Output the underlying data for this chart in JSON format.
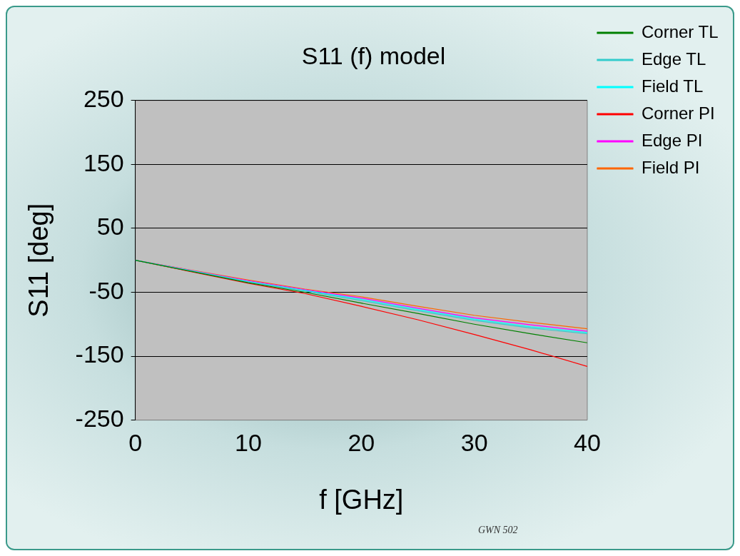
{
  "chart_data": {
    "type": "line",
    "title": "S11 (f) model",
    "xlabel": "f [GHz]",
    "ylabel": "S11 [deg]",
    "annotations": [
      "GWN 502"
    ],
    "x": [
      0,
      10,
      15,
      20,
      25,
      30,
      35,
      40
    ],
    "series": [
      {
        "name": "Corner TL",
        "color": "#008000",
        "values": [
          0,
          -35,
          -50,
          -67,
          -83,
          -100,
          -115,
          -129
        ]
      },
      {
        "name": "Edge TL",
        "color": "#33cccc",
        "values": [
          0,
          -34,
          -48,
          -63,
          -79,
          -94,
          -106,
          -115
        ]
      },
      {
        "name": "Field TL",
        "color": "#00ffff",
        "values": [
          0,
          -33,
          -47,
          -61,
          -77,
          -92,
          -104,
          -113
        ]
      },
      {
        "name": "Corner PI",
        "color": "#ff0000",
        "values": [
          0,
          -36,
          -52,
          -72,
          -93,
          -116,
          -140,
          -166
        ]
      },
      {
        "name": "Edge PI",
        "color": "#ff00ff",
        "values": [
          0,
          -32,
          -46,
          -59,
          -75,
          -90,
          -101,
          -111
        ]
      },
      {
        "name": "Field PI",
        "color": "#ff6600",
        "values": [
          0,
          -31,
          -45,
          -57,
          -72,
          -86,
          -97,
          -107
        ]
      }
    ],
    "xlim": [
      0,
      40
    ],
    "xticks": [
      0,
      10,
      20,
      30,
      40
    ],
    "ylim": [
      -250,
      250
    ],
    "yticks": [
      -250,
      -150,
      -50,
      50,
      150,
      250
    ],
    "grid": "y",
    "legend": "top right",
    "line_style": "solid",
    "marker": "none"
  }
}
